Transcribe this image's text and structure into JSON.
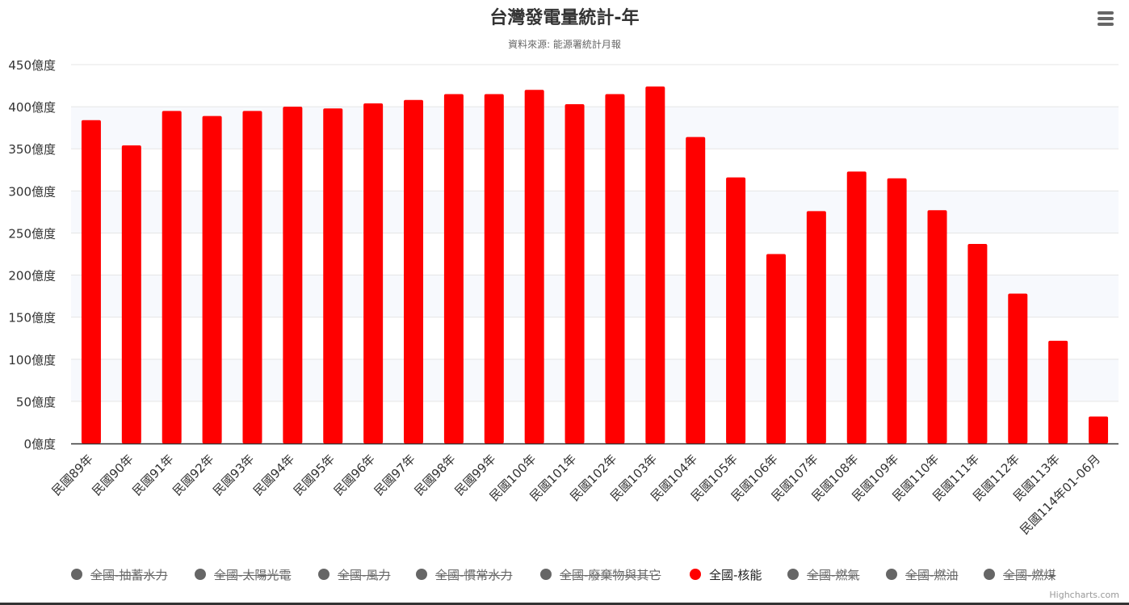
{
  "header": {
    "title": "台灣發電量統計-年",
    "subtitle": "資料來源: 能源署統計月報"
  },
  "chart_data": {
    "type": "bar",
    "title": "台灣發電量統計-年",
    "subtitle": "資料來源: 能源署統計月報",
    "xlabel": "",
    "ylabel": "",
    "ylim": [
      0,
      450
    ],
    "y_tick_values": [
      0,
      50,
      100,
      150,
      200,
      250,
      300,
      350,
      400,
      450
    ],
    "y_tick_suffix": "億度",
    "grid": true,
    "legend_position": "bottom",
    "categories": [
      "民國89年",
      "民國90年",
      "民國91年",
      "民國92年",
      "民國93年",
      "民國94年",
      "民國95年",
      "民國96年",
      "民國97年",
      "民國98年",
      "民國99年",
      "民國100年",
      "民國101年",
      "民國102年",
      "民國103年",
      "民國104年",
      "民國105年",
      "民國106年",
      "民國107年",
      "民國108年",
      "民國109年",
      "民國110年",
      "民國111年",
      "民國112年",
      "民國113年",
      "民國114年01-06月"
    ],
    "series": [
      {
        "name": "全國-核能",
        "color": "#ff0000",
        "visible": true,
        "values": [
          384,
          354,
          395,
          389,
          395,
          400,
          398,
          404,
          408,
          415,
          415,
          420,
          403,
          415,
          424,
          364,
          316,
          225,
          276,
          323,
          315,
          277,
          237,
          178,
          122,
          32
        ]
      }
    ],
    "legend": [
      {
        "name": "全國-抽蓄水力",
        "color": "#666666",
        "visible": false
      },
      {
        "name": "全國-太陽光電",
        "color": "#666666",
        "visible": false
      },
      {
        "name": "全國-風力",
        "color": "#666666",
        "visible": false
      },
      {
        "name": "全國-慣常水力",
        "color": "#666666",
        "visible": false
      },
      {
        "name": "全國-廢棄物與其它",
        "color": "#666666",
        "visible": false
      },
      {
        "name": "全國-核能",
        "color": "#ff0000",
        "visible": true
      },
      {
        "name": "全國-燃氣",
        "color": "#666666",
        "visible": false
      },
      {
        "name": "全國-燃油",
        "color": "#666666",
        "visible": false
      },
      {
        "name": "全國-燃煤",
        "color": "#666666",
        "visible": false
      }
    ]
  },
  "footer": {
    "credits": "Highcharts.com"
  },
  "icons": {
    "menu": "hamburger-menu-icon",
    "legend_marker": "circle"
  }
}
